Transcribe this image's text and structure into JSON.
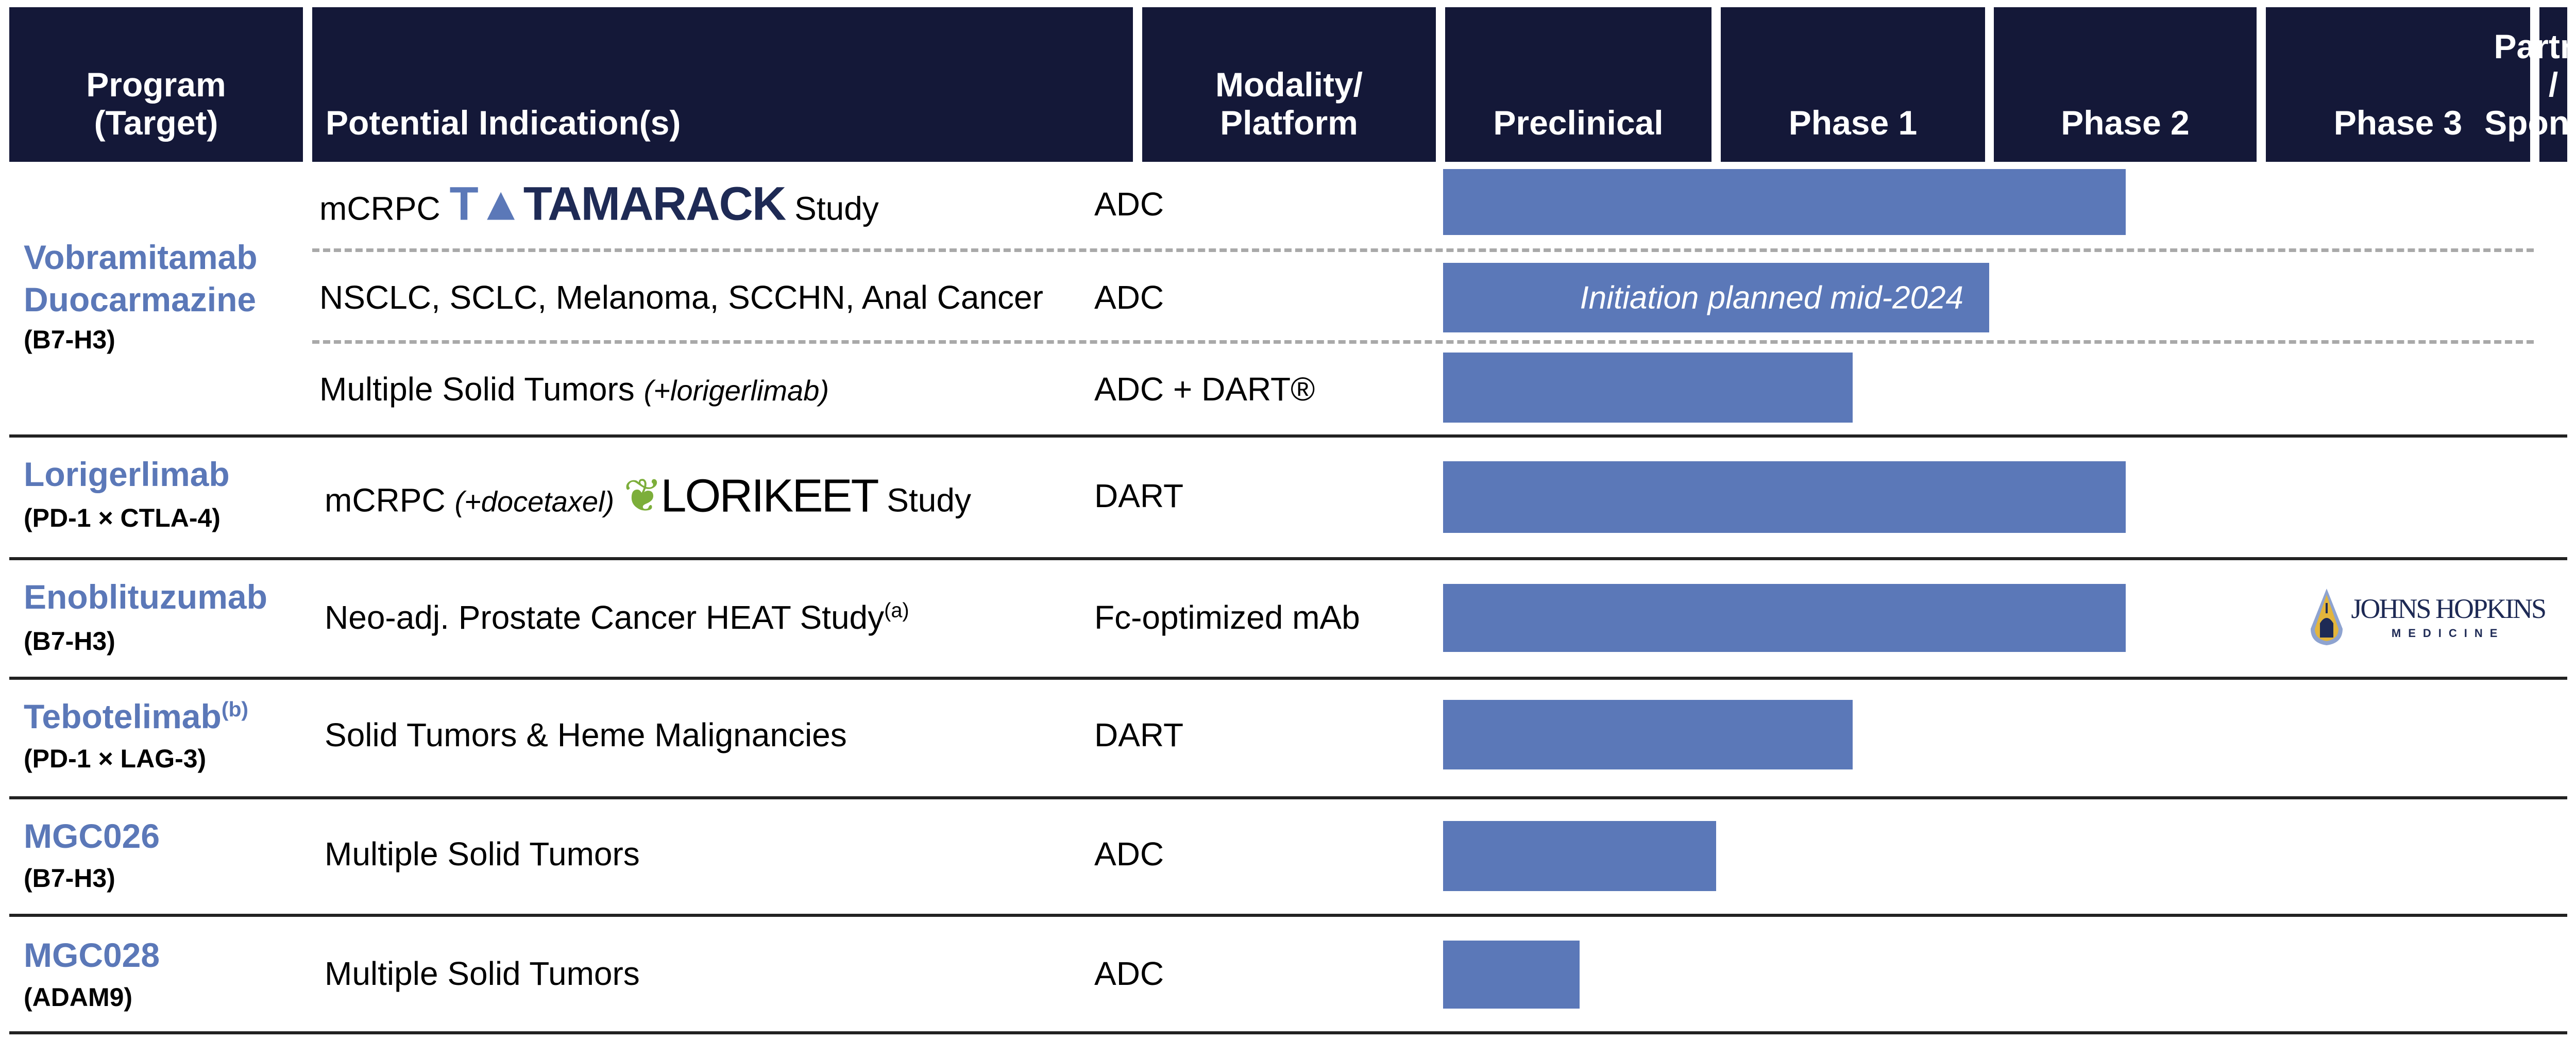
{
  "colors": {
    "header_bg": "#141838",
    "bar": "#5b78b8",
    "program": "#5b78b8"
  },
  "header": {
    "program_line1": "Program",
    "program_line2": "(Target)",
    "indication": "Potential Indication(s)",
    "modality_line1": "Modality/",
    "modality_line2": "Platform",
    "phases": [
      "Preclinical",
      "Phase 1",
      "Phase 2",
      "Phase 3"
    ],
    "partner_line1": "Partner /",
    "partner_line2": "Sponsor"
  },
  "programs": [
    {
      "name_line1": "Vobramitamab",
      "name_line2": "Duocarmazine",
      "target": "(B7-H3)"
    },
    {
      "name_line1": "Lorigerlimab",
      "target": "(PD-1 × CTLA-4)"
    },
    {
      "name_line1": "Enoblituzumab",
      "target": "(B7-H3)"
    },
    {
      "name_line1": "Tebotelimab",
      "name_sup": "(b)",
      "target": "(PD-1 × LAG-3)"
    },
    {
      "name_line1": "MGC026",
      "target": "(B7-H3)"
    },
    {
      "name_line1": "MGC028",
      "target": "(ADAM9)"
    }
  ],
  "rows": [
    {
      "indication": "mCRPC",
      "logo": "TAMARACK",
      "logo_icon": "tree-icon",
      "suffix": "Study",
      "modality": "ADC",
      "progress_phases": 2.5
    },
    {
      "indication": "NSCLC, SCLC, Melanoma, SCCHN, Anal Cancer",
      "modality": "ADC",
      "progress_phases": 2.0,
      "bar_note": "Initiation planned mid-2024"
    },
    {
      "indication": "Multiple Solid Tumors",
      "italic": "(+lorigerlimab)",
      "modality": "ADC + DART®",
      "progress_phases": 1.5
    },
    {
      "indication": "mCRPC",
      "italic": "(+docetaxel)",
      "logo": "LORIKEET",
      "logo_icon": "bird-icon",
      "suffix": "Study",
      "modality": "DART",
      "progress_phases": 2.5
    },
    {
      "indication": "Neo-adj. Prostate Cancer HEAT Study",
      "sup": "(a)",
      "modality": "Fc-optimized mAb",
      "progress_phases": 2.5,
      "partner": {
        "name": "JOHNS HOPKINS",
        "sub": "MEDICINE",
        "icon": "shield-dome-icon"
      }
    },
    {
      "indication": "Solid Tumors & Heme Malignancies",
      "modality": "DART",
      "progress_phases": 1.5
    },
    {
      "indication": "Multiple Solid Tumors",
      "modality": "ADC",
      "progress_phases": 1.0
    },
    {
      "indication": "Multiple Solid Tumors",
      "modality": "ADC",
      "progress_phases": 0.5
    }
  ]
}
